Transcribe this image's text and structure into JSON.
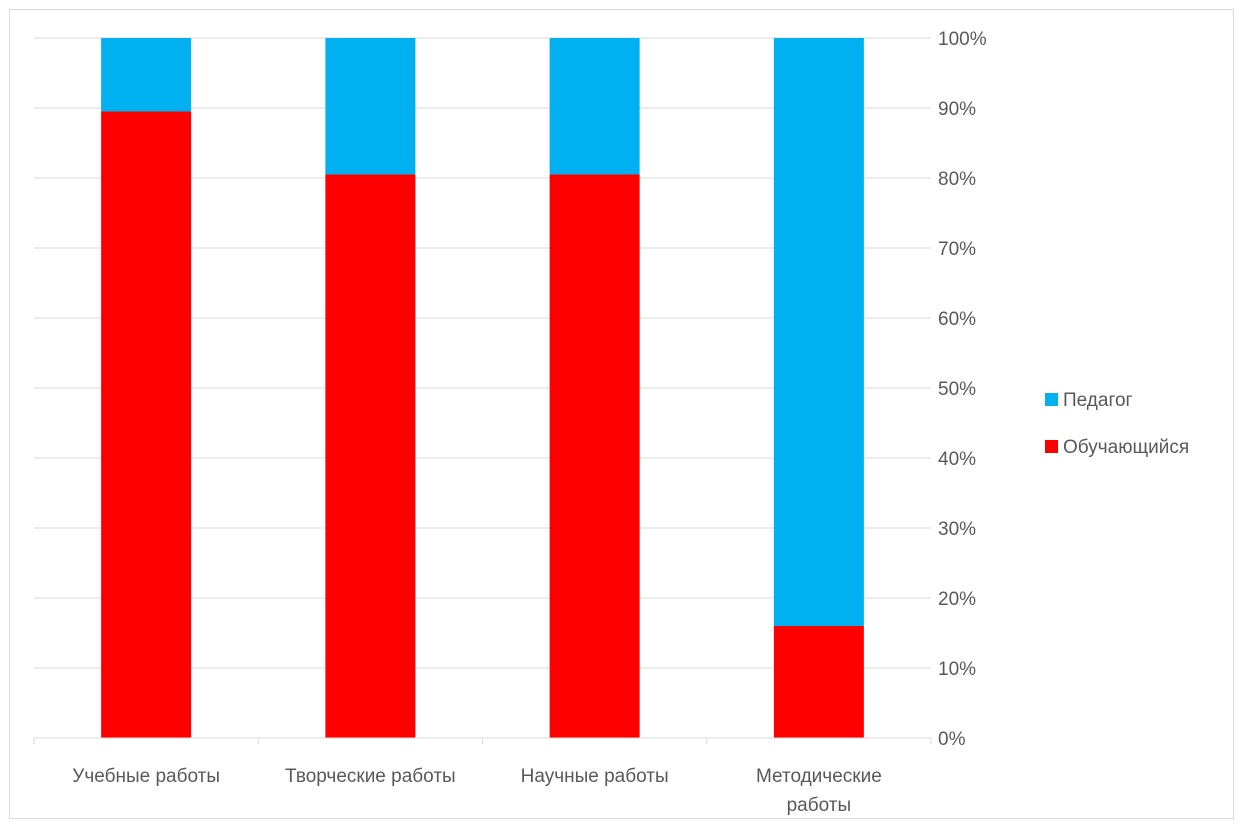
{
  "chart_data": {
    "type": "bar",
    "stacked": true,
    "percent_stacked": true,
    "categories": [
      "Учебные работы",
      "Творческие работы",
      "Научные работы",
      "Методические работы"
    ],
    "category_lines": [
      [
        "Учебные работы"
      ],
      [
        "Творческие работы"
      ],
      [
        "Научные работы"
      ],
      [
        "Методические",
        "работы"
      ]
    ],
    "series": [
      {
        "name": "Обучающийся",
        "color": "#ff0000",
        "values": [
          89.5,
          80.5,
          80.5,
          16
        ]
      },
      {
        "name": "Педагог",
        "color": "#00b0f0",
        "values": [
          10.5,
          19.5,
          19.5,
          84
        ]
      }
    ],
    "legend_order": [
      "Педагог",
      "Обучающийся"
    ],
    "y_axis_position": "right",
    "ylim": [
      0,
      100
    ],
    "yticks": [
      "0%",
      "10%",
      "20%",
      "30%",
      "40%",
      "50%",
      "60%",
      "70%",
      "80%",
      "90%",
      "100%"
    ],
    "grid": true,
    "legend_position": "right"
  }
}
